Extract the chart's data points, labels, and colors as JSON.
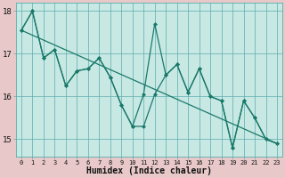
{
  "xlabel": "Humidex (Indice chaleur)",
  "bg_color": "#c8e8e4",
  "plot_bg_color": "#c8e8e4",
  "outer_bg_color": "#e8c8c8",
  "grid_color": "#5aadad",
  "line_color": "#1a7a6a",
  "xlim": [
    -0.5,
    23.5
  ],
  "ylim": [
    14.6,
    18.2
  ],
  "yticks": [
    15,
    16,
    17,
    18
  ],
  "xticks": [
    0,
    1,
    2,
    3,
    4,
    5,
    6,
    7,
    8,
    9,
    10,
    11,
    12,
    13,
    14,
    15,
    16,
    17,
    18,
    19,
    20,
    21,
    22,
    23
  ],
  "line1_x": [
    0,
    1,
    2,
    3,
    4,
    5,
    6,
    7,
    8,
    9,
    10,
    11,
    12,
    13,
    14,
    15,
    16,
    17,
    18,
    19,
    20,
    21,
    22,
    23
  ],
  "line1_y": [
    17.55,
    18.0,
    16.9,
    17.1,
    16.25,
    16.6,
    16.65,
    16.9,
    16.45,
    15.8,
    15.3,
    16.05,
    17.7,
    16.5,
    16.75,
    16.1,
    16.65,
    16.0,
    15.9,
    14.8,
    15.9,
    15.5,
    15.0,
    14.9
  ],
  "line2_x": [
    0,
    1,
    2,
    3,
    4,
    5,
    6,
    7,
    8,
    9,
    10,
    11,
    12,
    13,
    14,
    15,
    16,
    17,
    18,
    19,
    20,
    21,
    22,
    23
  ],
  "line2_y": [
    17.55,
    18.0,
    16.9,
    17.1,
    16.25,
    16.6,
    16.65,
    16.9,
    16.45,
    15.8,
    15.3,
    15.3,
    16.05,
    16.5,
    16.75,
    16.1,
    16.65,
    16.0,
    15.9,
    14.8,
    15.9,
    15.5,
    15.0,
    14.9
  ],
  "line3_x": [
    0,
    23
  ],
  "line3_y": [
    17.55,
    14.9
  ],
  "marker_size": 2.5,
  "line_width": 0.9
}
